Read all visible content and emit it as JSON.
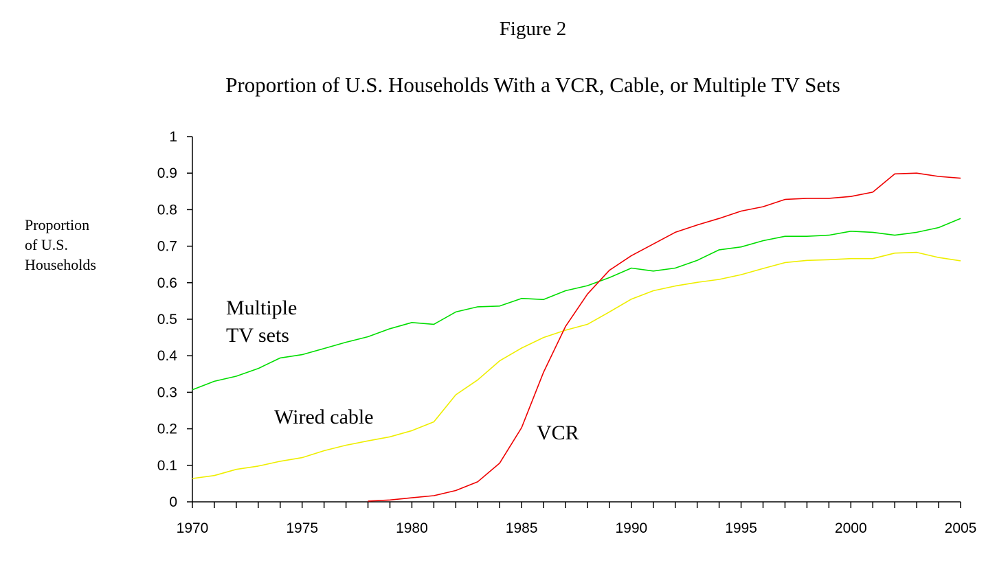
{
  "figure_label": "Figure 2",
  "chart_data": {
    "type": "line",
    "title": "Proportion of U.S. Households With a VCR, Cable, or Multiple TV Sets",
    "ylabel": [
      "Proportion",
      "of U.S.",
      "Households"
    ],
    "xlabel": "",
    "xlim": [
      1970,
      2005
    ],
    "ylim": [
      0,
      1
    ],
    "x_ticks": [
      1970,
      1975,
      1980,
      1985,
      1990,
      1995,
      2000,
      2005
    ],
    "y_ticks": [
      0,
      0.1,
      0.2,
      0.3,
      0.4,
      0.5,
      0.6,
      0.7,
      0.8,
      0.9,
      1
    ],
    "y_tick_labels": [
      "0",
      "0.1",
      "0.2",
      "0.3",
      "0.4",
      "0.5",
      "0.6",
      "0.7",
      "0.8",
      "0.9",
      "1"
    ],
    "x_tick_labels": [
      "1970",
      "1975",
      "1980",
      "1985",
      "1990",
      "1995",
      "2000",
      "2005"
    ],
    "grid": false,
    "legend": "none",
    "series": [
      {
        "annotation": [
          "Multiple",
          "TV sets"
        ],
        "color": "#00dd00",
        "x": [
          1970,
          1971,
          1972,
          1973,
          1974,
          1975,
          1976,
          1977,
          1978,
          1979,
          1980,
          1981,
          1982,
          1983,
          1984,
          1985,
          1986,
          1987,
          1988,
          1989,
          1990,
          1991,
          1992,
          1993,
          1994,
          1995,
          1996,
          1997,
          1998,
          1999,
          2000,
          2001,
          2002,
          2003,
          2004,
          2005
        ],
        "values": [
          0.307,
          0.33,
          0.344,
          0.365,
          0.394,
          0.403,
          0.42,
          0.437,
          0.452,
          0.474,
          0.491,
          0.486,
          0.52,
          0.534,
          0.536,
          0.557,
          0.554,
          0.578,
          0.592,
          0.614,
          0.64,
          0.632,
          0.64,
          0.661,
          0.69,
          0.698,
          0.715,
          0.727,
          0.727,
          0.73,
          0.741,
          0.738,
          0.73,
          0.738,
          0.751,
          0.776
        ]
      },
      {
        "annotation": [
          "Wired cable"
        ],
        "color": "#eeee00",
        "x": [
          1970,
          1971,
          1972,
          1973,
          1974,
          1975,
          1976,
          1977,
          1978,
          1979,
          1980,
          1981,
          1982,
          1983,
          1984,
          1985,
          1986,
          1987,
          1988,
          1989,
          1990,
          1991,
          1992,
          1993,
          1994,
          1995,
          1996,
          1997,
          1998,
          1999,
          2000,
          2001,
          2002,
          2003,
          2004,
          2005
        ],
        "values": [
          0.064,
          0.072,
          0.089,
          0.098,
          0.111,
          0.121,
          0.14,
          0.155,
          0.167,
          0.178,
          0.195,
          0.219,
          0.293,
          0.334,
          0.386,
          0.421,
          0.45,
          0.47,
          0.486,
          0.52,
          0.555,
          0.578,
          0.591,
          0.601,
          0.609,
          0.622,
          0.639,
          0.655,
          0.661,
          0.663,
          0.666,
          0.666,
          0.681,
          0.683,
          0.669,
          0.66
        ]
      },
      {
        "annotation": [
          "VCR"
        ],
        "color": "#ee0000",
        "x": [
          1978,
          1979,
          1980,
          1981,
          1982,
          1983,
          1984,
          1985,
          1986,
          1987,
          1988,
          1989,
          1990,
          1991,
          1992,
          1993,
          1994,
          1995,
          1996,
          1997,
          1998,
          1999,
          2000,
          2001,
          2002,
          2003,
          2004,
          2005
        ],
        "values": [
          0.002,
          0.005,
          0.011,
          0.017,
          0.031,
          0.055,
          0.106,
          0.203,
          0.355,
          0.48,
          0.569,
          0.634,
          0.674,
          0.706,
          0.738,
          0.758,
          0.776,
          0.796,
          0.808,
          0.828,
          0.831,
          0.831,
          0.836,
          0.848,
          0.898,
          0.9,
          0.891,
          0.886
        ]
      }
    ]
  }
}
